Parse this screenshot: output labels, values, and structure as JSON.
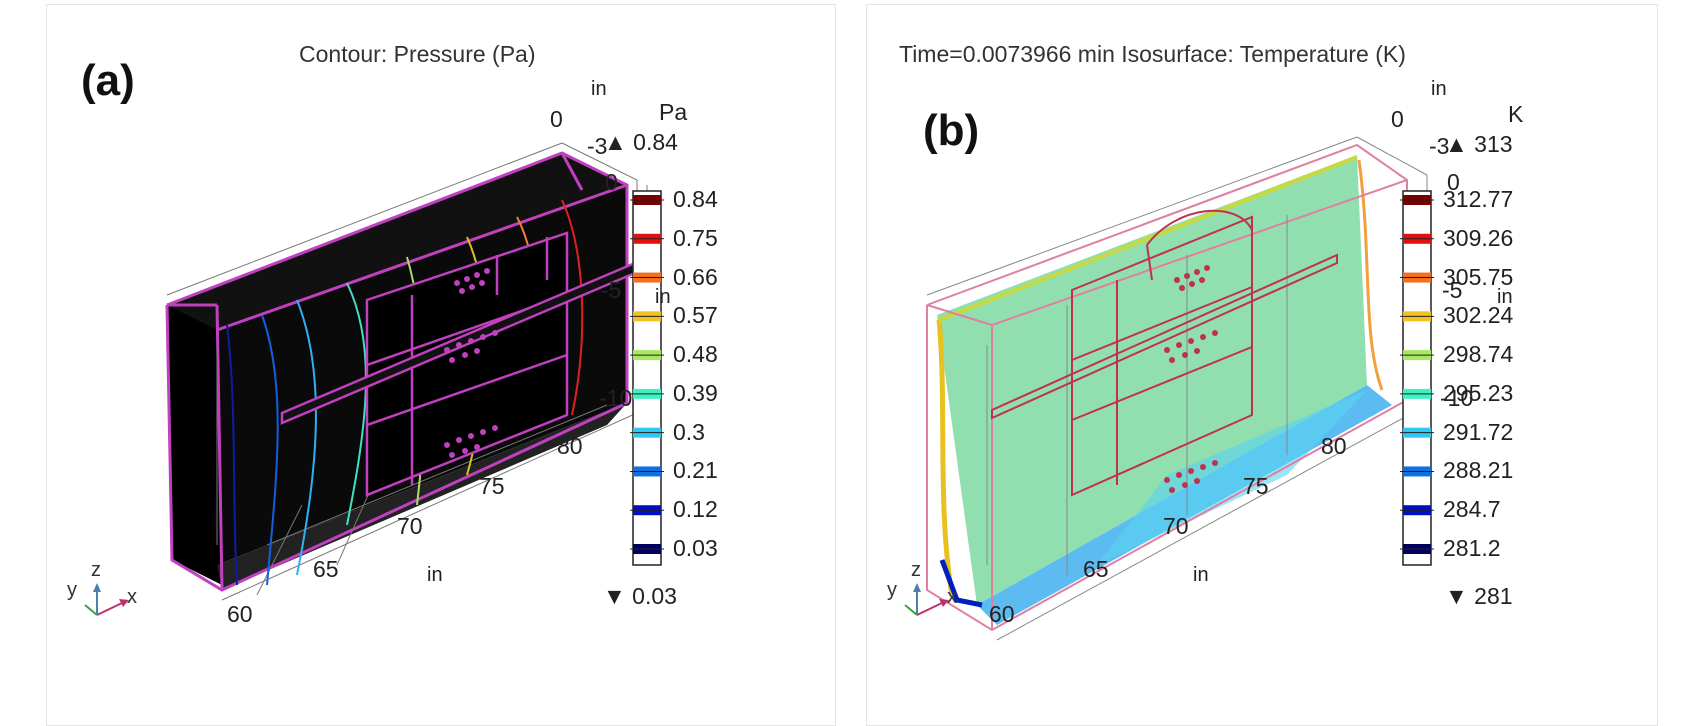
{
  "panel_a": {
    "label": "(a)",
    "title": "Contour: Pressure (Pa)",
    "unit": "Pa",
    "max_marker": "▲ 0.84",
    "min_marker": "▼ 0.03",
    "colorbar_ticks": [
      "0.84",
      "0.75",
      "0.66",
      "0.57",
      "0.48",
      "0.39",
      "0.3",
      "0.21",
      "0.12",
      "0.03"
    ],
    "colorbar_colors": [
      "#7a0000",
      "#e01010",
      "#f07020",
      "#f5c020",
      "#a8e860",
      "#40f0c0",
      "#30c8f0",
      "#1070e0",
      "#0010c0",
      "#000060"
    ],
    "axis_labels": {
      "x_ticks": [
        "60",
        "65",
        "70",
        "75",
        "80"
      ],
      "x_unit": "in",
      "y_ticks": [
        "0",
        "-5",
        "-10"
      ],
      "y_unit": "in",
      "z_ticks": [
        "0",
        "-3"
      ],
      "z_unit": "in"
    },
    "triad": {
      "y": "y",
      "z": "z",
      "x": "x"
    }
  },
  "panel_b": {
    "label": "(b)",
    "title": "Time=0.0073966 min  Isosurface: Temperature (K)",
    "unit": "K",
    "max_marker": "▲ 313",
    "min_marker": "▼ 281",
    "colorbar_ticks": [
      "312.77",
      "309.26",
      "305.75",
      "302.24",
      "298.74",
      "295.23",
      "291.72",
      "288.21",
      "284.7",
      "281.2"
    ],
    "colorbar_colors": [
      "#7a0000",
      "#e01010",
      "#f07020",
      "#f5c020",
      "#a8e860",
      "#40f0c0",
      "#30c8f0",
      "#1070e0",
      "#0010c0",
      "#000060"
    ],
    "axis_labels": {
      "x_ticks": [
        "60",
        "65",
        "70",
        "75",
        "80"
      ],
      "x_unit": "in",
      "y_ticks": [
        "0",
        "-5",
        "-10"
      ],
      "y_unit": "in",
      "z_ticks": [
        "0",
        "-3"
      ],
      "z_unit": "in"
    },
    "triad": {
      "y": "y",
      "z": "z",
      "x": "x"
    }
  }
}
